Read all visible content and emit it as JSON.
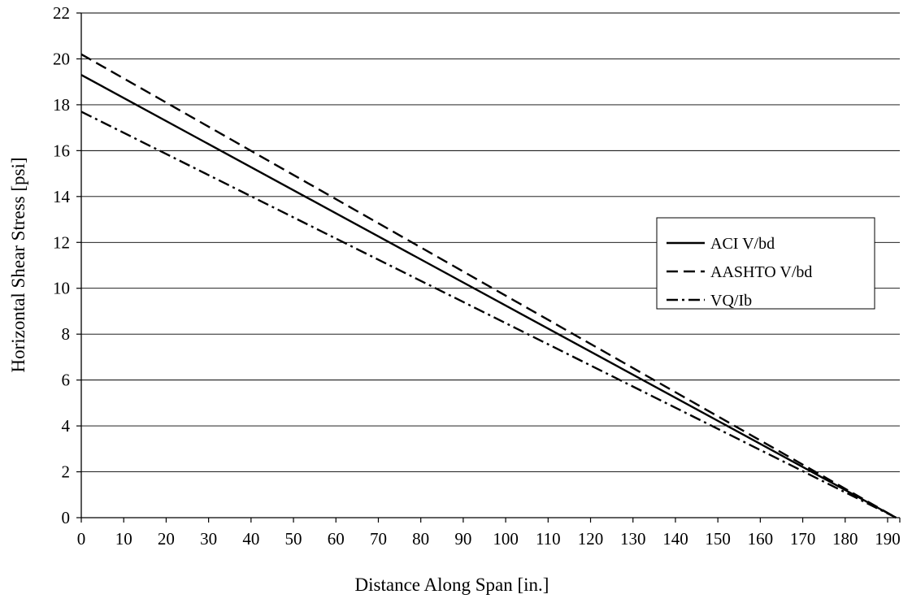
{
  "chart_data": {
    "type": "line",
    "title": "",
    "xlabel": "Distance Along Span [in.]",
    "ylabel": "Horizontal Shear Stress [psi]",
    "xlim": [
      0,
      192
    ],
    "ylim": [
      0,
      22
    ],
    "x_ticks": [
      "0",
      "10",
      "20",
      "30",
      "40",
      "50",
      "60",
      "70",
      "80",
      "90",
      "100",
      "110",
      "120",
      "130",
      "140",
      "150",
      "160",
      "170",
      "180",
      "190"
    ],
    "y_ticks": [
      "0",
      "2",
      "4",
      "6",
      "8",
      "10",
      "12",
      "14",
      "16",
      "18",
      "20",
      "22"
    ],
    "grid": "horizontal",
    "legend_position": "right",
    "series": [
      {
        "name": "ACI V/bd",
        "style": "solid",
        "x": [
          0,
          192
        ],
        "y": [
          19.3,
          0
        ]
      },
      {
        "name": "AASHTO V/bd",
        "style": "dashed",
        "x": [
          0,
          192
        ],
        "y": [
          20.2,
          0
        ]
      },
      {
        "name": "VQ/Ib",
        "style": "dash-dot",
        "x": [
          0,
          192
        ],
        "y": [
          17.7,
          0
        ]
      }
    ]
  }
}
